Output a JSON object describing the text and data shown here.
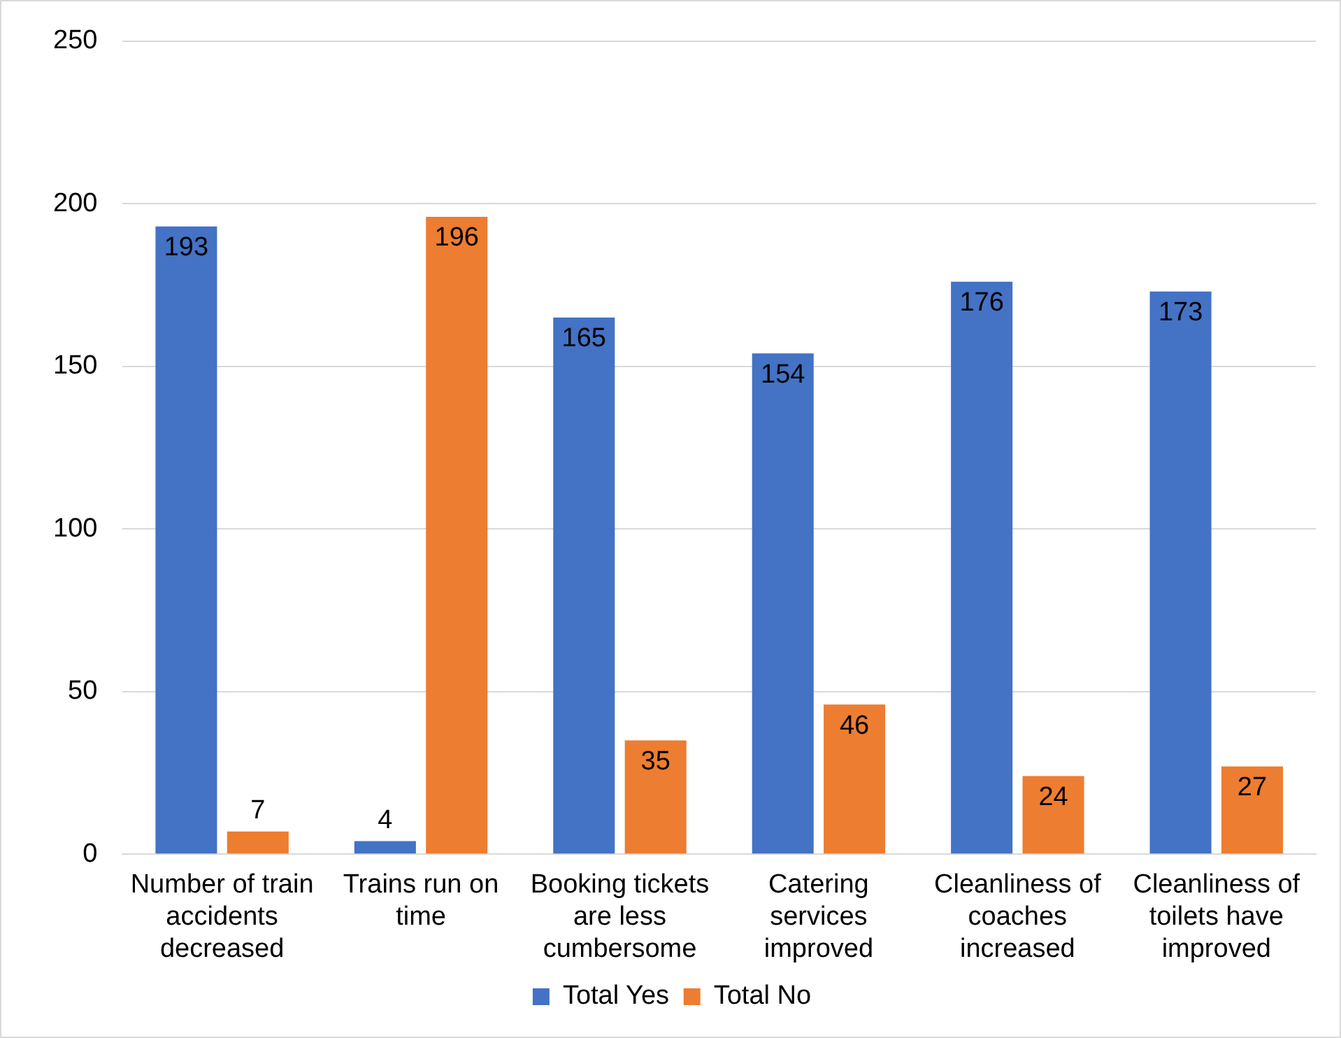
{
  "chart_data": {
    "type": "bar",
    "categories": [
      "Number of train accidents decreased",
      "Trains run on time",
      "Booking tickets are less cumbersome",
      "Catering services improved",
      "Cleanliness of coaches increased",
      "Cleanliness of toilets have improved"
    ],
    "series": [
      {
        "name": "Total Yes",
        "color": "#4472c4",
        "values": [
          193,
          4,
          165,
          154,
          176,
          173
        ]
      },
      {
        "name": "Total No",
        "color": "#ed7d31",
        "values": [
          7,
          196,
          35,
          46,
          24,
          27
        ]
      }
    ],
    "ylim": [
      0,
      250
    ],
    "yticks": [
      0,
      50,
      100,
      150,
      200,
      250
    ],
    "grid": "y",
    "legend": "bottom",
    "data_labels": true
  }
}
